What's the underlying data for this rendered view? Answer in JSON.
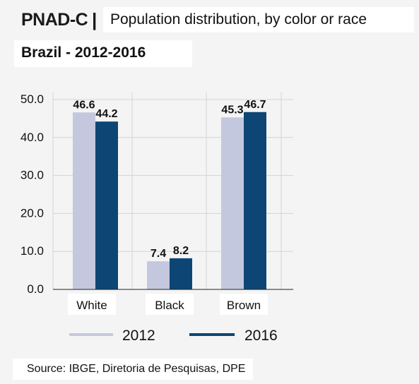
{
  "header": {
    "title": "PNAD-C",
    "separator": "|",
    "subtitle": "Population distribution, by color or race",
    "region": "Brazil - 2012-2016"
  },
  "footer": {
    "source": "Source: IBGE, Diretoria de Pesquisas, DPE"
  },
  "colors": {
    "series_2012": "#c4c8de",
    "series_2016": "#0d4674",
    "gridline": "#d3d3d3",
    "axis": "#222222"
  },
  "chart_data": {
    "type": "bar",
    "title": "Population distribution, by color or race",
    "categories": [
      "White",
      "Black",
      "Brown"
    ],
    "series": [
      {
        "name": "2012",
        "values": [
          46.6,
          7.4,
          45.3
        ],
        "labels": [
          "46.6",
          "7.4",
          "45.3"
        ]
      },
      {
        "name": "2016",
        "values": [
          44.2,
          8.2,
          46.7
        ],
        "labels": [
          "44.2",
          "8.2",
          "46.7"
        ]
      }
    ],
    "ylim": [
      0,
      50
    ],
    "yticks": [
      0,
      10,
      20,
      30,
      40,
      50
    ],
    "ytick_labels": [
      "0.0",
      "10.0",
      "20.0",
      "30.0",
      "40.0",
      "50.0"
    ],
    "grid": true,
    "legend": "bottom",
    "xlabel": "",
    "ylabel": ""
  }
}
